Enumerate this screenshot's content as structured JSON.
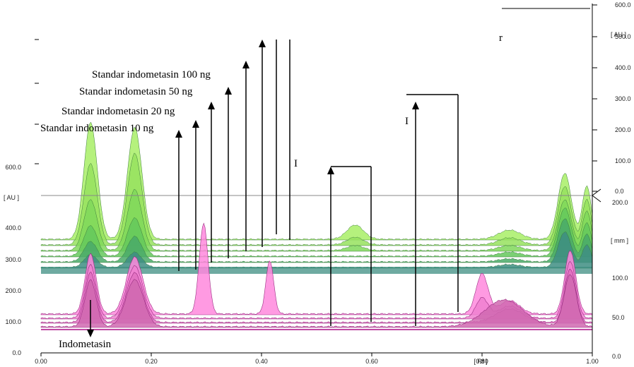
{
  "chart_data": {
    "type": "area",
    "x_axis": {
      "label": "[ Rf ]",
      "range": [
        0.0,
        1.0
      ],
      "ticks": [
        "0.00",
        "0.20",
        "0.40",
        "0.60",
        "0.80",
        "1.00"
      ]
    },
    "left_axis": {
      "label": "[ AU ]",
      "range": [
        0.0,
        600.0
      ],
      "ticks": [
        "0.0",
        "100.0",
        "200.0",
        "300.0",
        "400.0",
        "600.0"
      ]
    },
    "right_axis_upper": {
      "label": "[ AU ]",
      "range": [
        0.0,
        600.0
      ],
      "ticks": [
        "0.0",
        "100.0",
        "200.0",
        "300.0",
        "400.0",
        "500.0",
        "600.0"
      ]
    },
    "right_axis_lower": {
      "label": "[ mm ]",
      "range": [
        0.0,
        200.0
      ],
      "ticks": [
        "0.0",
        "50.0",
        "100.0",
        "200.0"
      ]
    },
    "annotations": [
      {
        "text": "Standar indometasin 10 ng",
        "x": 0.25
      },
      {
        "text": "Standar indometasin 20 ng",
        "x": 0.28
      },
      {
        "text": "Standar indometasin 50 ng",
        "x": 0.31
      },
      {
        "text": "Standar indometasin 100 ng",
        "x": 0.34
      },
      {
        "text": "Indometasin",
        "x": 0.09
      }
    ],
    "partial_annotations": [
      "l",
      "I",
      "r"
    ],
    "standard_tracks": [
      {
        "color": "#a8ee66",
        "peaks": [
          [
            0.09,
            230,
            0.012
          ],
          [
            0.17,
            220,
            0.013
          ],
          [
            0.57,
            28,
            0.015
          ],
          [
            0.85,
            18,
            0.02
          ],
          [
            0.95,
            130,
            0.012
          ],
          [
            0.99,
            105,
            0.008
          ]
        ]
      },
      {
        "color": "#96e25e",
        "peaks": [
          [
            0.09,
            160,
            0.012
          ],
          [
            0.17,
            180,
            0.013
          ],
          [
            0.57,
            15,
            0.015
          ],
          [
            0.85,
            14,
            0.02
          ],
          [
            0.95,
            115,
            0.012
          ],
          [
            0.99,
            90,
            0.008
          ]
        ]
      },
      {
        "color": "#80d85a",
        "peaks": [
          [
            0.09,
            100,
            0.012
          ],
          [
            0.17,
            120,
            0.013
          ],
          [
            0.57,
            10,
            0.015
          ],
          [
            0.85,
            10,
            0.02
          ],
          [
            0.95,
            100,
            0.012
          ],
          [
            0.99,
            78,
            0.008
          ]
        ]
      },
      {
        "color": "#64c85c",
        "peaks": [
          [
            0.09,
            60,
            0.012
          ],
          [
            0.17,
            75,
            0.013
          ],
          [
            0.85,
            8,
            0.02
          ],
          [
            0.95,
            95,
            0.012
          ],
          [
            0.99,
            66,
            0.008
          ]
        ]
      },
      {
        "color": "#4aaa68",
        "peaks": [
          [
            0.09,
            40,
            0.012
          ],
          [
            0.17,
            50,
            0.013
          ],
          [
            0.85,
            6,
            0.02
          ],
          [
            0.95,
            85,
            0.012
          ],
          [
            0.99,
            55,
            0.008
          ]
        ]
      },
      {
        "color": "#3e8e82",
        "peaks": [
          [
            0.09,
            25,
            0.012
          ],
          [
            0.17,
            30,
            0.013
          ],
          [
            0.85,
            6,
            0.02
          ],
          [
            0.95,
            70,
            0.012
          ],
          [
            0.99,
            45,
            0.008
          ]
        ]
      }
    ],
    "sample_tracks": [
      {
        "color": "#ff88dd",
        "peaks": [
          [
            0.09,
            90,
            0.01
          ],
          [
            0.17,
            85,
            0.015
          ],
          [
            0.295,
            135,
            0.008
          ],
          [
            0.415,
            80,
            0.007
          ],
          [
            0.8,
            60,
            0.011
          ],
          [
            0.85,
            20,
            0.018
          ],
          [
            0.96,
            95,
            0.01
          ]
        ]
      },
      {
        "color": "#f080d0",
        "peaks": [
          [
            0.09,
            80,
            0.01
          ],
          [
            0.17,
            78,
            0.015
          ],
          [
            0.8,
            30,
            0.011
          ],
          [
            0.85,
            18,
            0.02
          ],
          [
            0.96,
            85,
            0.01
          ]
        ]
      },
      {
        "color": "#e070c0",
        "peaks": [
          [
            0.09,
            75,
            0.01
          ],
          [
            0.17,
            74,
            0.015
          ],
          [
            0.85,
            20,
            0.025
          ],
          [
            0.96,
            80,
            0.01
          ]
        ]
      },
      {
        "color": "#d068b0",
        "peaks": [
          [
            0.09,
            70,
            0.01
          ],
          [
            0.17,
            70,
            0.016
          ],
          [
            0.84,
            40,
            0.035
          ],
          [
            0.96,
            78,
            0.011
          ]
        ]
      }
    ]
  }
}
